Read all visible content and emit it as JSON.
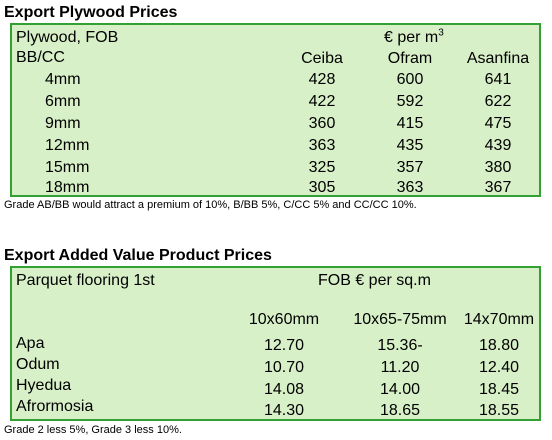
{
  "plywood": {
    "title": "Export Plywood Prices",
    "header_left_1": "Plywood, FOB",
    "header_left_2": "BB/CC",
    "currency_prefix": "€ per m",
    "currency_exp": "3",
    "columns": [
      "Ceiba",
      "Ofram",
      "Asanfina"
    ],
    "rows": [
      {
        "size": "4mm",
        "values": [
          "428",
          "600",
          "641"
        ]
      },
      {
        "size": "6mm",
        "values": [
          "422",
          "592",
          "622"
        ]
      },
      {
        "size": "9mm",
        "values": [
          "360",
          "415",
          "475"
        ]
      },
      {
        "size": "12mm",
        "values": [
          "363",
          "435",
          "439"
        ]
      },
      {
        "size": "15mm",
        "values": [
          "325",
          "357",
          "380"
        ]
      },
      {
        "size": "18mm",
        "values": [
          "305",
          "363",
          "367"
        ]
      }
    ],
    "note": "Grade AB/BB would attract a premium of 10%, B/BB 5%, C/CC 5% and CC/CC 10%."
  },
  "added_value": {
    "title": "Export Added Value Product Prices",
    "header_left": "Parquet flooring 1st",
    "header_currency": "FOB € per sq.m",
    "columns": [
      "10x60mm",
      "10x65-75mm",
      "14x70mm"
    ],
    "rows": [
      {
        "species": "Apa",
        "values": [
          "12.70",
          "15.36-",
          "18.80"
        ]
      },
      {
        "species": "Odum",
        "values": [
          "10.70",
          "11.20",
          "12.40"
        ]
      },
      {
        "species": "Hyedua",
        "values": [
          "14.08",
          "14.00",
          "18.45"
        ]
      },
      {
        "species": "Afrormosia",
        "values": [
          "14.30",
          "18.65",
          "18.55"
        ]
      }
    ],
    "note": "Grade 2 less 5%, Grade 3 less 10%."
  },
  "colors": {
    "panel_bg": "#d8f0c8",
    "panel_border": "#33a033"
  }
}
